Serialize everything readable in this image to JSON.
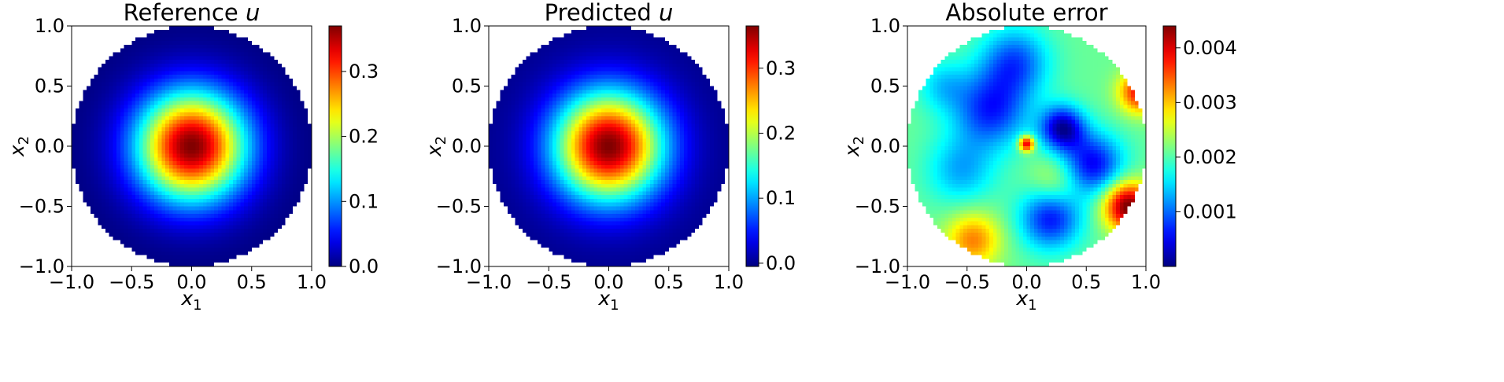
{
  "chart_data": [
    {
      "type": "heatmap",
      "title_prefix": "Reference ",
      "title_var": "u",
      "xlabel": {
        "var": "x",
        "sub": "1"
      },
      "ylabel": {
        "var": "x",
        "sub": "2"
      },
      "xlim": [
        -1.0,
        1.0
      ],
      "ylim": [
        -1.0,
        1.0
      ],
      "xticks": [
        "−1.0",
        "−0.5",
        "0.0",
        "0.5",
        "1.0"
      ],
      "yticks": [
        "−1.0",
        "−0.5",
        "0.0",
        "0.5",
        "1.0"
      ],
      "domain": "unit disk",
      "colormap": "jet",
      "colorbar": {
        "min": 0.0,
        "max": 0.37,
        "ticks": [
          0.0,
          0.1,
          0.2,
          0.3
        ],
        "tick_labels": [
          "0.0",
          "0.1",
          "0.2",
          "0.3"
        ]
      },
      "field": {
        "kind": "radial",
        "peak": 0.37,
        "center": [
          0.0,
          0.0
        ],
        "description_fn": "peak*exp(-r^2/0.2)"
      }
    },
    {
      "type": "heatmap",
      "title_prefix": "Predicted ",
      "title_var": "u",
      "xlabel": {
        "var": "x",
        "sub": "1"
      },
      "ylabel": {
        "var": "x",
        "sub": "2"
      },
      "xlim": [
        -1.0,
        1.0
      ],
      "ylim": [
        -1.0,
        1.0
      ],
      "xticks": [
        "−1.0",
        "−0.5",
        "0.0",
        "0.5",
        "1.0"
      ],
      "yticks": [
        "−1.0",
        "−0.5",
        "0.0",
        "0.5",
        "1.0"
      ],
      "domain": "unit disk",
      "colormap": "jet",
      "colorbar": {
        "min": -0.005,
        "max": 0.365,
        "ticks": [
          0.0,
          0.1,
          0.2,
          0.3
        ],
        "tick_labels": [
          "0.0",
          "0.1",
          "0.2",
          "0.3"
        ]
      },
      "field": {
        "kind": "radial",
        "peak": 0.365,
        "center": [
          0.0,
          0.0
        ]
      }
    },
    {
      "type": "heatmap",
      "title_prefix": "Absolute error",
      "title_var": "",
      "xlabel": {
        "var": "x",
        "sub": "1"
      },
      "ylabel": {
        "var": "x",
        "sub": "2"
      },
      "xlim": [
        -1.0,
        1.0
      ],
      "ylim": [
        -1.0,
        1.0
      ],
      "xticks": [
        "−1.0",
        "−0.5",
        "0.0",
        "0.5",
        "1.0"
      ],
      "yticks": [
        "−1.0",
        "−0.5",
        "0.0",
        "0.5",
        "1.0"
      ],
      "domain": "unit disk",
      "colormap": "jet",
      "colorbar": {
        "min": 0.0,
        "max": 0.0044,
        "ticks": [
          0.001,
          0.002,
          0.003,
          0.004
        ],
        "tick_labels": [
          "0.001",
          "0.002",
          "0.003",
          "0.004"
        ]
      },
      "field": {
        "kind": "blobs",
        "base": 0.0021,
        "blobs": [
          {
            "x": 0.85,
            "y": -0.5,
            "s": 0.14,
            "a": 0.0024
          },
          {
            "x": 0.95,
            "y": 0.45,
            "s": 0.12,
            "a": 0.0018
          },
          {
            "x": -0.45,
            "y": -0.78,
            "s": 0.16,
            "a": 0.0012
          },
          {
            "x": 0.0,
            "y": 0.02,
            "s": 0.045,
            "a": 0.0022
          },
          {
            "x": 0.3,
            "y": 0.15,
            "s": 0.13,
            "a": -0.0019
          },
          {
            "x": -0.3,
            "y": 0.3,
            "s": 0.22,
            "a": -0.0014
          },
          {
            "x": 0.2,
            "y": -0.6,
            "s": 0.18,
            "a": -0.0015
          },
          {
            "x": -0.1,
            "y": 0.7,
            "s": 0.2,
            "a": -0.0012
          },
          {
            "x": 0.55,
            "y": -0.15,
            "s": 0.18,
            "a": -0.0016
          },
          {
            "x": -0.55,
            "y": -0.2,
            "s": 0.2,
            "a": -0.0008
          },
          {
            "x": 0.25,
            "y": -0.3,
            "s": 0.15,
            "a": 0.0006
          },
          {
            "x": -0.7,
            "y": 0.5,
            "s": 0.15,
            "a": -0.0006
          }
        ]
      }
    }
  ]
}
